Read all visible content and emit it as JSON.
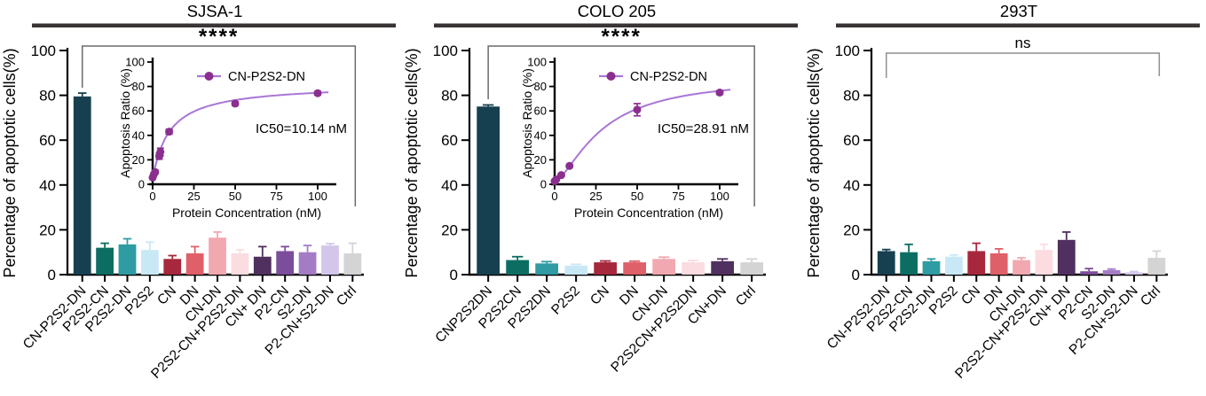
{
  "style": {
    "background": "#ffffff",
    "axis_color": "#000000",
    "text_color": "#000000",
    "title_rule_color": "#3a3434"
  },
  "chart_data": [
    {
      "type": "bar",
      "title": "SJSA-1",
      "ylabel": "Percentage of apoptotic cells(%)",
      "ylim": [
        0,
        100
      ],
      "y_ticks": [
        0,
        20,
        40,
        60,
        80,
        100
      ],
      "categories": [
        "CN-P2S2-DN",
        "P2S2-CN",
        "P2S2-DN",
        "P2S2",
        "CN",
        "DN",
        "CN-DN",
        "P2S2-CN+P2S2-DN",
        "CN+ DN",
        "P2-CN",
        "S2-DN",
        "P2-CN+S2-DN",
        "Ctrl"
      ],
      "values": [
        79.5,
        12,
        13.5,
        11,
        7,
        9.5,
        16.5,
        9.5,
        8,
        10.5,
        10,
        13,
        9.5
      ],
      "errors": [
        1.5,
        2,
        2.5,
        3.5,
        1.5,
        3,
        2.5,
        1.5,
        4.5,
        2,
        3,
        0.8,
        4.5
      ],
      "bar_colors": [
        "#16404f",
        "#0c6e62",
        "#2f9ba3",
        "#c9e8f6",
        "#a7273c",
        "#e0606a",
        "#f2a8b0",
        "#fbdce1",
        "#50305f",
        "#7c4d9b",
        "#a47cc6",
        "#d3c6ea",
        "#d4d4d4"
      ],
      "significance": {
        "label": "****",
        "bracket_y": 52,
        "left_drop": 47,
        "right_drop": 181,
        "color": "#6e6868"
      },
      "inset": {
        "type": "line-scatter",
        "legend": "CN-P2S2-DN",
        "annotation": "IC50=10.14 nM",
        "xlabel": "Protein Concentration (nM)",
        "ylabel": "Apoptosis Ratio (%)",
        "xlim": [
          0,
          110
        ],
        "ylim": [
          0,
          100
        ],
        "x_ticks": [
          0,
          25,
          50,
          75,
          100
        ],
        "y_ticks": [
          0,
          20,
          40,
          60,
          80,
          100
        ],
        "points": [
          [
            0,
            5.5,
            1
          ],
          [
            0.7,
            8,
            1
          ],
          [
            1.5,
            10,
            1.5
          ],
          [
            4,
            23,
            2.5
          ],
          [
            4.7,
            26.5,
            3
          ],
          [
            10,
            43,
            2
          ],
          [
            50,
            66,
            1.5
          ],
          [
            100,
            74.5,
            1.5
          ]
        ],
        "curve": {
          "y0": 4,
          "span": 78,
          "ec50": 10.14,
          "hill": 1
        },
        "curve_color": "#a976d6",
        "marker_color": "#8b2f8e"
      }
    },
    {
      "type": "bar",
      "title": "COLO 205",
      "ylabel": "Percentage of apoptotic cells(%)",
      "ylim": [
        0,
        100
      ],
      "y_ticks": [
        0,
        20,
        40,
        60,
        80,
        100
      ],
      "categories": [
        "CNP2S2DN",
        "P2S2CN",
        "P2S2DN",
        "P2S2",
        "CN",
        "DN",
        "CN-DN",
        "P2S2CN+P2S2DN",
        "CN+DN",
        "Ctrl"
      ],
      "values": [
        75,
        6.5,
        5,
        4,
        5.5,
        5.5,
        7,
        5.5,
        6,
        5.5
      ],
      "errors": [
        0.7,
        1.5,
        0.8,
        0.6,
        0.6,
        0.5,
        0.8,
        0.8,
        1,
        1.5
      ],
      "bar_colors": [
        "#16404f",
        "#0c6e62",
        "#2f9ba3",
        "#c9e8f6",
        "#a7273c",
        "#e0606a",
        "#f2a8b0",
        "#fbdce1",
        "#50305f",
        "#d4d4d4"
      ],
      "significance": {
        "label": "****",
        "bracket_y": 52,
        "left_drop": 60,
        "right_drop": 181,
        "color": "#6e6868"
      },
      "inset": {
        "type": "line-scatter",
        "legend": "CN-P2S2-DN",
        "annotation": "IC50=28.91 nM",
        "xlabel": "Protein Concentration (nM)",
        "ylabel": "Apoptosis Ratio (%)",
        "xlim": [
          0,
          110
        ],
        "ylim": [
          0,
          100
        ],
        "x_ticks": [
          0,
          25,
          50,
          75,
          100
        ],
        "y_ticks": [
          0,
          20,
          40,
          60,
          80,
          100
        ],
        "points": [
          [
            0,
            2.5,
            1
          ],
          [
            1,
            4,
            0.8
          ],
          [
            4,
            7.5,
            1
          ],
          [
            9,
            15,
            1
          ],
          [
            50,
            61,
            5
          ],
          [
            100,
            75,
            1.5
          ]
        ],
        "curve": {
          "y0": 2,
          "span": 86,
          "ec50": 28.91,
          "hill": 1.5
        },
        "curve_color": "#a976d6",
        "marker_color": "#8b2f8e"
      }
    },
    {
      "type": "bar",
      "title": "293T",
      "ylabel": "Percentage of apoptotic cells(%)",
      "ylim": [
        0,
        100
      ],
      "y_ticks": [
        0,
        20,
        40,
        60,
        80,
        100
      ],
      "categories": [
        "CN-P2S2-DN",
        "P2S2-CN",
        "P2S2-DN",
        "P2S2",
        "CN",
        "DN",
        "CN-DN",
        "P2S2-CN+P2S2-DN",
        "CN+ DN",
        "P2-CN",
        "S2-DN",
        "P2-CN+S2-DN",
        "Ctrl"
      ],
      "values": [
        10.5,
        10,
        6,
        8,
        10.5,
        9.5,
        6.5,
        11,
        15.5,
        1.5,
        2,
        1,
        7.5
      ],
      "errors": [
        0.7,
        3.5,
        1,
        0.8,
        3.5,
        2,
        1,
        2.5,
        3.5,
        1.2,
        0.5,
        0.4,
        3
      ],
      "bar_colors": [
        "#16404f",
        "#0c6e62",
        "#2f9ba3",
        "#c9e8f6",
        "#a7273c",
        "#e0606a",
        "#f2a8b0",
        "#fbdce1",
        "#50305f",
        "#7c4d9b",
        "#a47cc6",
        "#d3c6ea",
        "#d4d4d4"
      ],
      "significance": {
        "label": "ns",
        "bracket_y": 60,
        "left_drop": 28,
        "right_drop": 26,
        "color": "#8f8f8f"
      },
      "inset": null
    }
  ]
}
